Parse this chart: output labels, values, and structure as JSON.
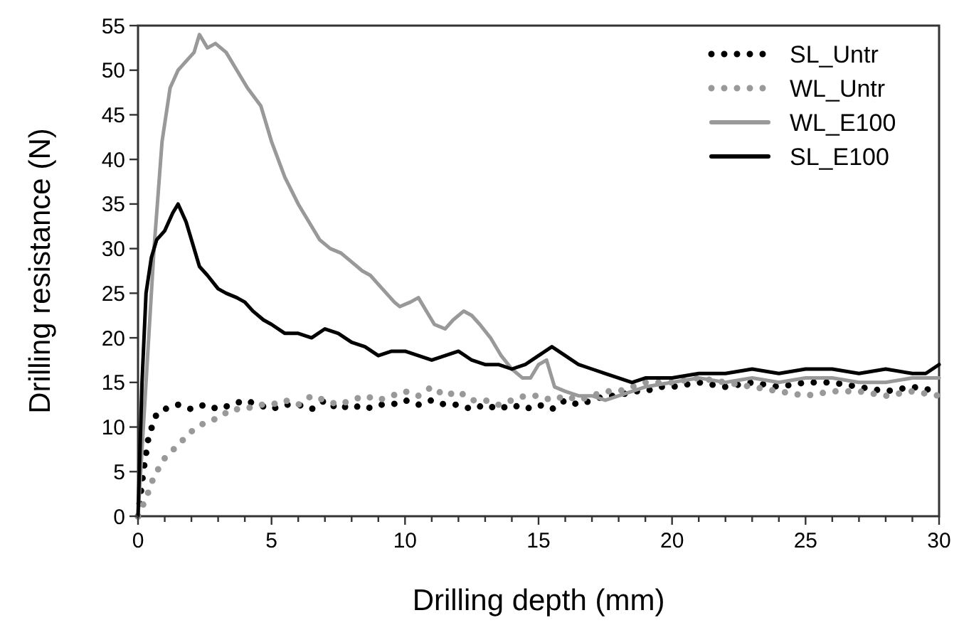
{
  "chart_data": {
    "type": "line",
    "xlabel": "Drilling depth (mm)",
    "ylabel": "Drilling resistance (N)",
    "xlim": [
      0,
      30
    ],
    "ylim": [
      0,
      55
    ],
    "xticks": [
      0,
      {
        "value": 1,
        "label": null
      },
      {
        "value": 2,
        "label": null
      },
      {
        "value": 3,
        "label": null
      },
      {
        "value": 4,
        "label": null
      },
      5,
      {
        "value": 6,
        "label": null
      },
      {
        "value": 7,
        "label": null
      },
      {
        "value": 8,
        "label": null
      },
      {
        "value": 9,
        "label": null
      },
      10,
      {
        "value": 11,
        "label": null
      },
      {
        "value": 12,
        "label": null
      },
      {
        "value": 13,
        "label": null
      },
      {
        "value": 14,
        "label": null
      },
      15,
      {
        "value": 16,
        "label": null
      },
      {
        "value": 17,
        "label": null
      },
      {
        "value": 18,
        "label": null
      },
      {
        "value": 19,
        "label": null
      },
      20,
      {
        "value": 21,
        "label": null
      },
      {
        "value": 22,
        "label": null
      },
      {
        "value": 23,
        "label": null
      },
      {
        "value": 24,
        "label": null
      },
      25,
      {
        "value": 26,
        "label": null
      },
      {
        "value": 27,
        "label": null
      },
      {
        "value": 28,
        "label": null
      },
      {
        "value": 29,
        "label": null
      },
      30
    ],
    "yticks": [
      0,
      5,
      10,
      15,
      20,
      25,
      30,
      35,
      40,
      45,
      50,
      55
    ],
    "grid": false,
    "legend": "top right",
    "marker": "none",
    "series": [
      {
        "name": "SL_Untr",
        "color": "#000000",
        "line_style": "dotted",
        "x": [
          0,
          0.2,
          0.4,
          0.7,
          1,
          1.5,
          2,
          2.5,
          3,
          3.5,
          4,
          4.5,
          5,
          5.5,
          6,
          6.5,
          7,
          7.5,
          8,
          8.5,
          9,
          9.5,
          10,
          10.5,
          11,
          11.5,
          12,
          12.5,
          13,
          13.5,
          14,
          14.5,
          15,
          15.5,
          16,
          16.5,
          17,
          17.5,
          18,
          18.5,
          19,
          19.5,
          20,
          21,
          22,
          23,
          24,
          25,
          26,
          27,
          28,
          29,
          30
        ],
        "values": [
          0,
          5,
          9,
          11.5,
          12,
          12.5,
          12,
          12.5,
          12,
          12.5,
          13,
          12.5,
          12,
          12.5,
          12.5,
          12,
          13,
          12,
          12.5,
          12,
          12.5,
          12.5,
          13,
          12.5,
          13,
          12.5,
          12.5,
          12,
          12.5,
          12,
          12.5,
          12,
          12.5,
          12,
          13,
          12.5,
          13,
          13.5,
          13.5,
          14,
          14,
          14.5,
          14.5,
          15,
          14.5,
          15,
          14.5,
          15,
          15,
          14.5,
          14,
          14.5,
          14
        ]
      },
      {
        "name": "WL_Untr",
        "color": "#999999",
        "line_style": "dotted",
        "x": [
          0,
          0.3,
          0.6,
          1,
          1.5,
          2,
          2.5,
          3,
          3.5,
          4,
          4.5,
          5,
          5.5,
          6,
          6.5,
          7,
          7.5,
          8,
          8.5,
          9,
          9.5,
          10,
          10.5,
          11,
          11.5,
          12,
          12.5,
          13,
          13.5,
          14,
          14.5,
          15,
          15.5,
          16,
          16.5,
          17,
          17.5,
          18,
          18.5,
          19,
          20,
          21,
          22,
          23,
          24,
          25,
          26,
          27,
          28,
          29,
          30
        ],
        "values": [
          0,
          2,
          4.5,
          6.5,
          8,
          9.5,
          10.5,
          11,
          12,
          12,
          12.5,
          12.5,
          13,
          12.5,
          13.5,
          13,
          12.5,
          13,
          13.5,
          13,
          13.5,
          14,
          13.5,
          14.5,
          13.5,
          14,
          13,
          13,
          12.5,
          13,
          13.5,
          13.5,
          13,
          13.5,
          13,
          13.5,
          14,
          14,
          14.5,
          15,
          15,
          15.5,
          15,
          14.5,
          14,
          13.5,
          14,
          14,
          13.5,
          14,
          13.5
        ]
      },
      {
        "name": "WL_E100",
        "color": "#999999",
        "line_style": "solid",
        "x": [
          0,
          0.3,
          0.6,
          0.9,
          1.2,
          1.5,
          1.8,
          2.1,
          2.3,
          2.6,
          2.9,
          3.3,
          3.7,
          4.1,
          4.6,
          5,
          5.5,
          6,
          6.4,
          6.8,
          7.2,
          7.6,
          8,
          8.4,
          8.7,
          9,
          9.3,
          9.6,
          9.8,
          10.2,
          10.5,
          10.8,
          11.1,
          11.5,
          11.8,
          12.2,
          12.5,
          12.8,
          13.2,
          13.6,
          14,
          14.4,
          14.7,
          15,
          15.3,
          15.6,
          16,
          16.5,
          17,
          17.5,
          18,
          18.5,
          19,
          20,
          21,
          22,
          23,
          24,
          25,
          26,
          27,
          28,
          29,
          30
        ],
        "values": [
          0,
          15,
          30,
          42,
          48,
          50,
          51,
          52,
          54,
          52.5,
          53,
          52,
          50,
          48,
          46,
          42,
          38,
          35,
          33,
          31,
          30,
          29.5,
          28.5,
          27.5,
          27,
          26,
          25,
          24,
          23.5,
          24,
          24.5,
          23,
          21.5,
          21,
          22,
          23,
          22.5,
          21.5,
          20,
          18,
          16.5,
          15.5,
          15.5,
          17,
          17.5,
          14.5,
          14,
          13.5,
          13.5,
          13,
          13.5,
          14,
          14.5,
          15,
          15.5,
          15,
          15.5,
          15,
          15.5,
          15.5,
          15,
          15,
          15.5,
          15.5
        ]
      },
      {
        "name": "SL_E100",
        "color": "#000000",
        "line_style": "solid",
        "x": [
          0,
          0.15,
          0.3,
          0.5,
          0.7,
          1,
          1.3,
          1.5,
          1.8,
          2,
          2.3,
          2.6,
          3,
          3.3,
          3.7,
          4,
          4.3,
          4.7,
          5,
          5.5,
          6,
          6.5,
          7,
          7.5,
          8,
          8.5,
          9,
          9.5,
          10,
          10.5,
          11,
          11.5,
          12,
          12.5,
          13,
          13.5,
          14,
          14.5,
          15,
          15.5,
          16,
          16.5,
          17,
          17.5,
          18,
          18.5,
          19,
          20,
          21,
          22,
          23,
          24,
          25,
          26,
          27,
          28,
          29,
          29.5,
          30
        ],
        "values": [
          0,
          15,
          25,
          29,
          31,
          32,
          34,
          35,
          33,
          31,
          28,
          27,
          25.5,
          25,
          24.5,
          24,
          23,
          22,
          21.5,
          20.5,
          20.5,
          20,
          21,
          20.5,
          19.5,
          19,
          18,
          18.5,
          18.5,
          18,
          17.5,
          18,
          18.5,
          17.5,
          17,
          17,
          16.5,
          17,
          18,
          19,
          18,
          17,
          16.5,
          16,
          15.5,
          15,
          15.5,
          15.5,
          16,
          16,
          16.5,
          16,
          16.5,
          16.5,
          16,
          16.5,
          16,
          16,
          17
        ]
      }
    ]
  }
}
